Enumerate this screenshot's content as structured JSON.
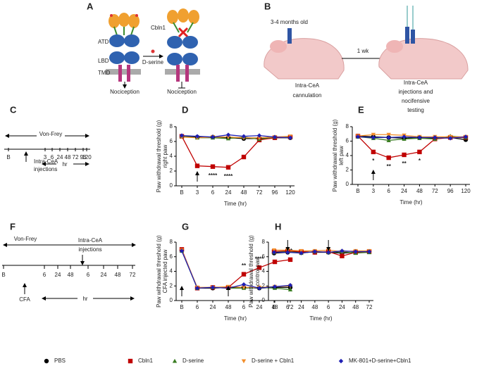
{
  "panel_a": {
    "label": "A",
    "cbln1": "Cbln1",
    "atd": "ATD",
    "lbd": "LBD",
    "tmd": "TMD",
    "dserine": "D-serine",
    "outputs": [
      "Nociception",
      "Nociception"
    ]
  },
  "panel_b": {
    "label": "B",
    "age": "3-4 months old",
    "interval": "1 wk",
    "left": [
      "Intra-CeA",
      "cannulation"
    ],
    "right": [
      "Intra-CeA",
      "injections and",
      "nocifensive",
      "testing"
    ]
  },
  "panel_c": {
    "label": "C",
    "von_frey": "Von-Frey",
    "ticks": [
      "B",
      "3",
      "6",
      "24",
      "48",
      "72",
      "96",
      "120"
    ],
    "unit": "hr",
    "injection": [
      "Intra-CeA",
      "injections"
    ]
  },
  "panel_f": {
    "label": "F",
    "von_frey": "Von-Frey",
    "injection": [
      "Intra-CeA",
      "injections"
    ],
    "ticks": [
      "B",
      "6",
      "24",
      "48",
      "6",
      "24",
      "48",
      "72"
    ],
    "unit": "hr",
    "cfa": "CFA"
  },
  "chart_data": [
    {
      "type": "line",
      "label": "D",
      "xlabel": "Time (hr)",
      "ylabel": [
        "Paw withdrawal threshold (g)",
        "right paw"
      ],
      "categories": [
        "B",
        "3",
        "6",
        "24",
        "48",
        "72",
        "96",
        "120"
      ],
      "ylim": [
        0,
        8
      ],
      "yticks": [
        0,
        2,
        4,
        6,
        8
      ],
      "annotations": [
        null,
        "*",
        "****",
        "****",
        null,
        null,
        null,
        null
      ],
      "series": [
        {
          "name": "PBS",
          "color": "#000000",
          "marker": "circle",
          "values": [
            6.7,
            6.6,
            6.6,
            6.5,
            6.4,
            6.4,
            6.5,
            6.5
          ]
        },
        {
          "name": "Cbln1",
          "color": "#c00000",
          "marker": "square",
          "values": [
            6.7,
            2.7,
            2.6,
            2.5,
            3.9,
            6.2,
            6.5,
            6.6
          ]
        },
        {
          "name": "D-serine",
          "color": "#3a7d23",
          "marker": "triangle",
          "values": [
            6.7,
            6.5,
            6.5,
            6.4,
            6.6,
            6.3,
            6.6,
            6.6
          ]
        },
        {
          "name": "D-serine + Cbln1",
          "color": "#f28e2b",
          "marker": "triangle-down",
          "values": [
            6.6,
            6.5,
            6.6,
            6.6,
            6.5,
            6.5,
            6.6,
            6.7
          ]
        },
        {
          "name": "MK-801+D-serine+Cbln1",
          "color": "#1f1fb4",
          "marker": "diamond",
          "values": [
            6.8,
            6.7,
            6.6,
            6.9,
            6.7,
            6.8,
            6.6,
            6.5
          ]
        }
      ]
    },
    {
      "type": "line",
      "label": "E",
      "xlabel": "Time (hr)",
      "ylabel": [
        "Paw withdrawal threshold (g)",
        "left paw"
      ],
      "categories": [
        "B",
        "3",
        "6",
        "24",
        "48",
        "72",
        "96",
        "120"
      ],
      "ylim": [
        0,
        8
      ],
      "yticks": [
        0,
        2,
        4,
        6,
        8
      ],
      "annotations": [
        null,
        "*",
        "**",
        "**",
        "*",
        null,
        null,
        null
      ],
      "series": [
        {
          "name": "PBS",
          "color": "#000000",
          "marker": "circle",
          "values": [
            6.7,
            6.6,
            6.5,
            6.4,
            6.5,
            6.4,
            6.5,
            6.2
          ]
        },
        {
          "name": "Cbln1",
          "color": "#c00000",
          "marker": "square",
          "values": [
            6.7,
            4.5,
            3.7,
            4.1,
            4.5,
            6.3,
            6.5,
            6.5
          ]
        },
        {
          "name": "D-serine",
          "color": "#3a7d23",
          "marker": "triangle",
          "values": [
            6.6,
            6.4,
            6.1,
            6.3,
            6.4,
            6.3,
            6.7,
            6.5
          ]
        },
        {
          "name": "D-serine + Cbln1",
          "color": "#f28e2b",
          "marker": "triangle-down",
          "values": [
            6.7,
            6.9,
            6.9,
            6.8,
            6.6,
            6.6,
            6.6,
            6.6
          ]
        },
        {
          "name": "MK-801+D-serine+Cbln1",
          "color": "#1f1fb4",
          "marker": "diamond",
          "values": [
            6.6,
            6.5,
            6.5,
            6.6,
            6.5,
            6.5,
            6.4,
            6.6
          ]
        }
      ]
    },
    {
      "type": "line",
      "label": "G",
      "xlabel": "Time (hr)",
      "ylabel": [
        "Paw withdrawal threshold (g)",
        "CFA  injected paw"
      ],
      "categories": [
        "B",
        "6",
        "24",
        "48",
        "6",
        "24",
        "48",
        "72"
      ],
      "ylim": [
        0,
        8
      ],
      "yticks": [
        0,
        2,
        4,
        6,
        8
      ],
      "annotations": [
        null,
        null,
        null,
        null,
        "**",
        "****",
        "**",
        "**"
      ],
      "series": [
        {
          "name": "PBS",
          "color": "#000000",
          "marker": "circle",
          "values": [
            6.9,
            1.7,
            1.7,
            1.8,
            1.8,
            1.7,
            1.8,
            1.8
          ]
        },
        {
          "name": "Cbln1",
          "color": "#c00000",
          "marker": "square",
          "values": [
            7.0,
            1.7,
            1.8,
            1.8,
            3.6,
            4.5,
            5.3,
            5.6
          ]
        },
        {
          "name": "D-serine",
          "color": "#3a7d23",
          "marker": "triangle",
          "values": [
            6.8,
            1.7,
            1.8,
            1.7,
            1.7,
            1.8,
            1.7,
            1.5
          ]
        },
        {
          "name": "D-serine + Cbln1",
          "color": "#f28e2b",
          "marker": "triangle-down",
          "values": [
            6.9,
            1.8,
            1.8,
            1.9,
            1.8,
            1.8,
            1.9,
            2.0
          ]
        },
        {
          "name": "MK-801+D-serine+Cbln1",
          "color": "#1f1fb4",
          "marker": "diamond",
          "values": [
            6.8,
            1.7,
            1.8,
            1.7,
            2.2,
            1.7,
            1.9,
            2.1
          ]
        }
      ]
    },
    {
      "type": "line",
      "label": "H",
      "xlabel": "Time (hr)",
      "ylabel": [
        "Paw withdrawal threshold (g)",
        "control paw"
      ],
      "categories": [
        "B",
        "6",
        "24",
        "48",
        "6",
        "24",
        "48",
        "72"
      ],
      "ylim": [
        0,
        8
      ],
      "yticks": [
        0,
        2,
        4,
        6,
        8
      ],
      "annotations": [
        null,
        null,
        null,
        null,
        null,
        null,
        null,
        null
      ],
      "series": [
        {
          "name": "PBS",
          "color": "#000000",
          "marker": "circle",
          "values": [
            6.5,
            6.6,
            6.7,
            6.6,
            6.6,
            6.5,
            6.6,
            6.7
          ]
        },
        {
          "name": "Cbln1",
          "color": "#c00000",
          "marker": "square",
          "values": [
            6.7,
            6.8,
            6.7,
            6.6,
            6.7,
            6.1,
            6.6,
            6.7
          ]
        },
        {
          "name": "D-serine",
          "color": "#3a7d23",
          "marker": "triangle",
          "values": [
            6.6,
            6.7,
            6.5,
            6.7,
            6.6,
            6.7,
            6.5,
            6.6
          ]
        },
        {
          "name": "D-serine + Cbln1",
          "color": "#f28e2b",
          "marker": "triangle-down",
          "values": [
            6.9,
            6.9,
            6.8,
            6.8,
            6.9,
            6.7,
            6.8,
            6.8
          ]
        },
        {
          "name": "MK-801+D-serine+Cbln1",
          "color": "#1f1fb4",
          "marker": "diamond",
          "values": [
            6.6,
            6.6,
            6.5,
            6.7,
            6.6,
            6.8,
            6.7,
            6.7
          ]
        }
      ]
    }
  ]
}
